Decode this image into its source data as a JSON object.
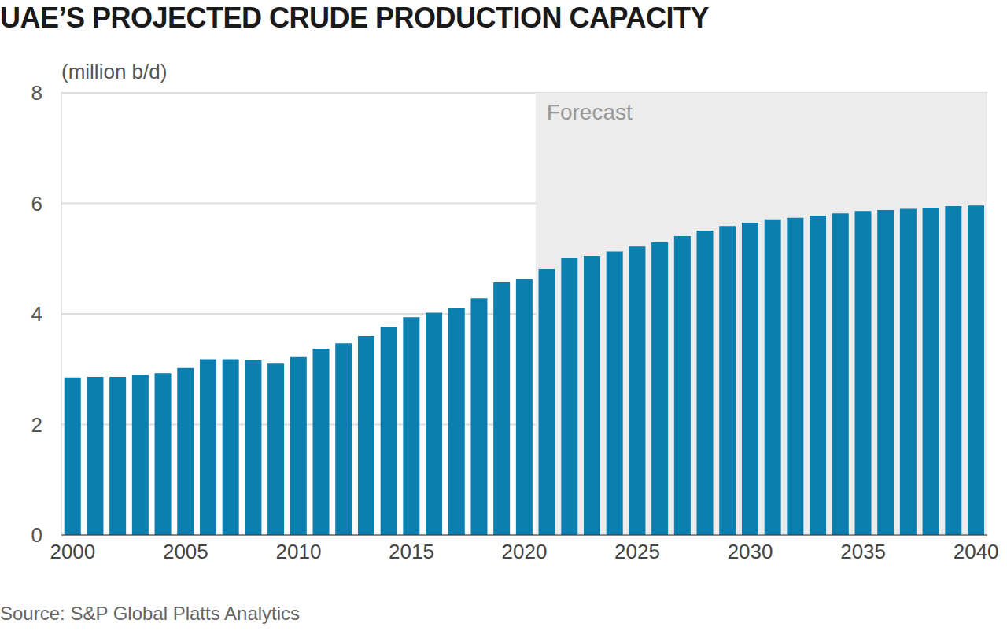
{
  "chart_data": {
    "type": "bar",
    "title": "UAE’S PROJECTED CRUDE PRODUCTION CAPACITY",
    "y_label": "(million b/d)",
    "source": "Source: S&P Global Platts Analytics",
    "categories": [
      "2000",
      null,
      null,
      null,
      null,
      "2005",
      null,
      null,
      null,
      null,
      "2010",
      null,
      null,
      null,
      null,
      "2015",
      null,
      null,
      null,
      null,
      "2020",
      null,
      null,
      null,
      null,
      "2025",
      null,
      null,
      null,
      null,
      "2030",
      null,
      null,
      null,
      null,
      "2035",
      null,
      null,
      null,
      null,
      "2040"
    ],
    "values": [
      2.85,
      2.86,
      2.86,
      2.9,
      2.93,
      3.02,
      3.18,
      3.18,
      3.16,
      3.1,
      3.22,
      3.37,
      3.47,
      3.6,
      3.77,
      3.94,
      4.02,
      4.1,
      4.28,
      4.57,
      4.63,
      4.81,
      5.01,
      5.04,
      5.13,
      5.22,
      5.3,
      5.41,
      5.51,
      5.59,
      5.65,
      5.71,
      5.74,
      5.78,
      5.82,
      5.86,
      5.88,
      5.9,
      5.92,
      5.95,
      5.96
    ],
    "color": "#0a7fb0",
    "ylim": [
      0,
      8
    ],
    "yticks": [
      0,
      2,
      4,
      6,
      8
    ],
    "grid": true,
    "annotations": [
      {
        "text": "Forecast",
        "x_start": 21,
        "x_end": 40
      }
    ]
  }
}
